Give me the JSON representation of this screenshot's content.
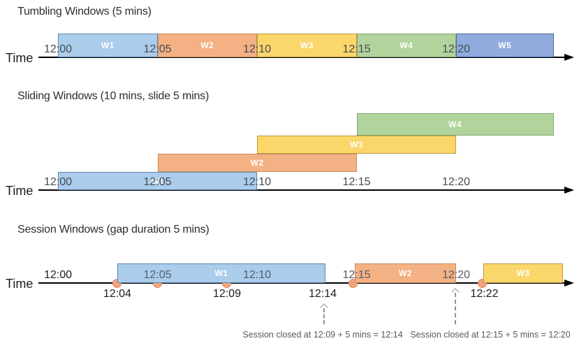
{
  "palette": {
    "blue": {
      "fill": "#abccea",
      "border": "#5d87b0"
    },
    "orange": {
      "fill": "#f4b183",
      "border": "#c88c5c"
    },
    "yellow": {
      "fill": "#fbd66b",
      "border": "#b99a3e"
    },
    "green": {
      "fill": "#b1d39c",
      "border": "#84a871"
    },
    "indigo": {
      "fill": "#92abdd",
      "border": "#47679e"
    }
  },
  "dot_color": "#f2a47f",
  "sections": [
    {
      "key": "tumbling",
      "title": "Tumbling Windows (5 mins)",
      "time_label": "Time",
      "ticks": [
        {
          "label": "12:00",
          "min": 0
        },
        {
          "label": "12:05",
          "min": 5
        },
        {
          "label": "12:10",
          "min": 10
        },
        {
          "label": "12:15",
          "min": 15
        },
        {
          "label": "12:20",
          "min": 20
        }
      ],
      "windows": [
        {
          "label": "W1",
          "start": 0,
          "end": 5,
          "color": "blue",
          "row": 0
        },
        {
          "label": "W2",
          "start": 5,
          "end": 10,
          "color": "orange",
          "row": 0
        },
        {
          "label": "W3",
          "start": 10,
          "end": 15,
          "color": "yellow",
          "row": 0
        },
        {
          "label": "W4",
          "start": 15,
          "end": 20,
          "color": "green",
          "row": 0
        },
        {
          "label": "W5",
          "start": 20,
          "end": 24.9,
          "color": "indigo",
          "row": 0
        }
      ]
    },
    {
      "key": "sliding",
      "title": "Sliding Windows (10 mins, slide 5 mins)",
      "time_label": "Time",
      "ticks": [
        {
          "label": "12:00",
          "min": 0
        },
        {
          "label": "12:05",
          "min": 5
        },
        {
          "label": "12:10",
          "min": 10
        },
        {
          "label": "12:15",
          "min": 15
        },
        {
          "label": "12:20",
          "min": 20
        }
      ],
      "windows": [
        {
          "label": "W1",
          "start": 0,
          "end": 10,
          "color": "blue",
          "row": 0
        },
        {
          "label": "W2",
          "start": 5,
          "end": 15,
          "color": "orange",
          "row": 1
        },
        {
          "label": "W3",
          "start": 10,
          "end": 20,
          "color": "yellow",
          "row": 2
        },
        {
          "label": "W4",
          "start": 15,
          "end": 24.9,
          "color": "green",
          "row": 3
        }
      ]
    },
    {
      "key": "session",
      "title": "Session Windows (gap duration 5 mins)",
      "time_label": "Time",
      "ticks": [
        {
          "label": "12:00",
          "min": 0,
          "dark": true
        },
        {
          "label": "12:05",
          "min": 5
        },
        {
          "label": "12:10",
          "min": 10
        },
        {
          "label": "12:15",
          "min": 15
        },
        {
          "label": "12:20",
          "min": 20
        }
      ],
      "windows": [
        {
          "label": "W1",
          "start": 2.98,
          "end": 13.44,
          "color": "blue",
          "row": 0
        },
        {
          "label": "W2",
          "start": 14.91,
          "end": 20.0,
          "color": "orange",
          "row": 0
        },
        {
          "label": "W3",
          "start": 21.37,
          "end": 25.37,
          "color": "yellow",
          "row": 0
        }
      ],
      "events": [
        {
          "min": 2.98
        },
        {
          "min": 4.99
        },
        {
          "min": 8.49
        },
        {
          "min": 14.81
        },
        {
          "min": 21.33
        }
      ],
      "event_labels": [
        {
          "label": "12:04",
          "min": 2.98
        },
        {
          "label": "12:09",
          "min": 8.49
        },
        {
          "label": "12:14",
          "min": 13.3
        },
        {
          "label": "12:22",
          "min": 21.42
        }
      ],
      "callouts": [
        {
          "text": "Session closed at 12:09 + 5 mins = 12:14",
          "text_min": 13.3,
          "arrow_min": 13.37,
          "tall": false
        },
        {
          "text": "Session closed at 12:15 + 5 mins = 12:20",
          "text_min": 21.72,
          "arrow_min": 19.97,
          "tall": true
        }
      ]
    }
  ]
}
